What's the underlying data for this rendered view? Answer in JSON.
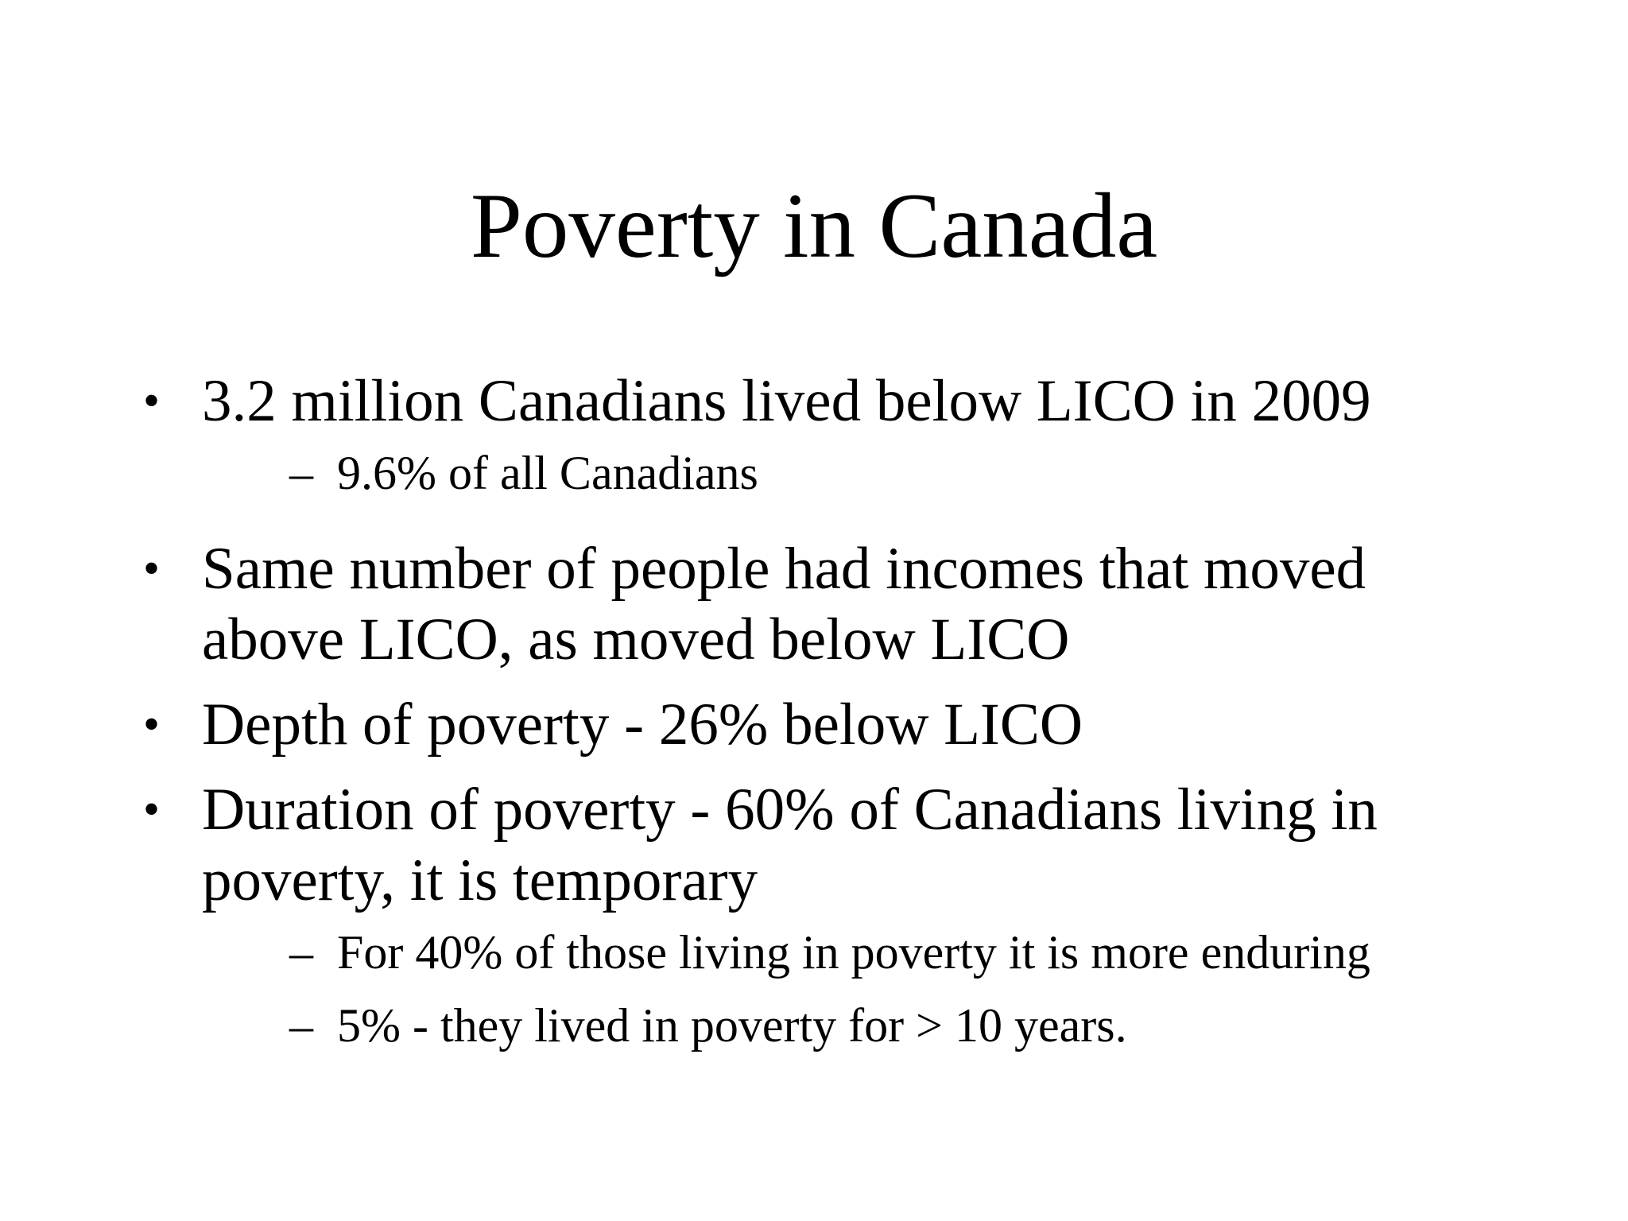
{
  "slide": {
    "title": "Poverty in Canada",
    "bullet_symbol": "•",
    "dash_symbol": "–",
    "points": [
      {
        "lines": [
          "3.2 million Canadians lived below LICO in 2009"
        ],
        "subpoints": [
          "9.6% of all Canadians"
        ]
      },
      {
        "lines": [
          "Same number of people had incomes that moved",
          "above LICO, as moved below LICO"
        ],
        "subpoints": []
      },
      {
        "lines": [
          "Depth of poverty - 26% below LICO"
        ],
        "subpoints": []
      },
      {
        "lines": [
          "Duration of poverty - 60% of Canadians living in",
          "poverty, it is temporary"
        ],
        "subpoints": [
          "For 40% of those living in poverty it is more enduring",
          "5% - they lived in poverty for > 10 years."
        ]
      }
    ]
  }
}
